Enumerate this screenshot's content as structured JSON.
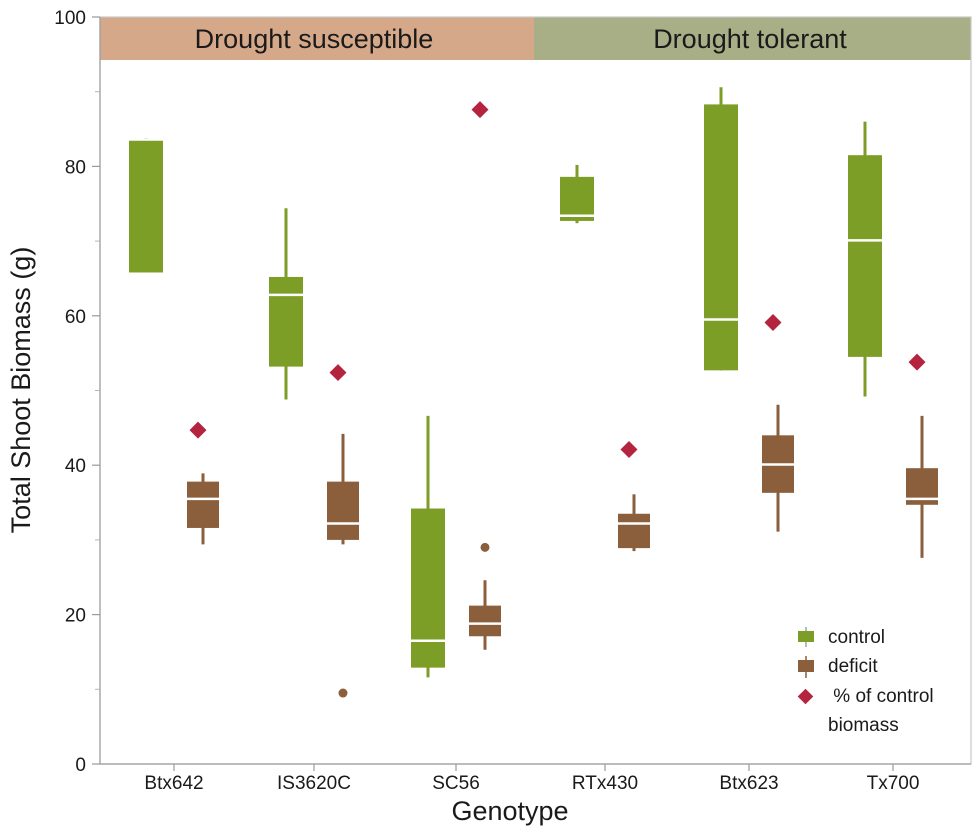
{
  "chart_data": {
    "type": "box",
    "xlabel": "Genotype",
    "ylabel": "Total Shoot Biomass (g)",
    "ylim": [
      0,
      100
    ],
    "yticks": [
      0,
      20,
      40,
      60,
      80,
      100
    ],
    "categories": [
      "Btx642",
      "IS3620C",
      "SC56",
      "RTx430",
      "Btx623",
      "Tx700"
    ],
    "groups": [
      {
        "label": "Drought susceptible",
        "categories": [
          "Btx642",
          "IS3620C",
          "SC56"
        ],
        "color": "#D4A889"
      },
      {
        "label": "Drought tolerant",
        "categories": [
          "RTx430",
          "Btx623",
          "Tx700"
        ],
        "color": "#A8AE86"
      }
    ],
    "series": [
      {
        "name": "control",
        "color": "#7C9E27",
        "boxes": [
          {
            "q1": 65.8,
            "median": 83.6,
            "q3": 83.6,
            "whisker_low": 65.8,
            "whisker_high": 83.8,
            "outliers": []
          },
          {
            "q1": 53.2,
            "median": 62.8,
            "q3": 65.2,
            "whisker_low": 48.8,
            "whisker_high": 74.4,
            "outliers": []
          },
          {
            "q1": 12.9,
            "median": 16.5,
            "q3": 34.2,
            "whisker_low": 11.6,
            "whisker_high": 46.6,
            "outliers": []
          },
          {
            "q1": 72.7,
            "median": 73.4,
            "q3": 78.6,
            "whisker_low": 72.4,
            "whisker_high": 80.2,
            "outliers": []
          },
          {
            "q1": 52.7,
            "median": 59.5,
            "q3": 88.3,
            "whisker_low": 52.7,
            "whisker_high": 90.6,
            "outliers": []
          },
          {
            "q1": 54.5,
            "median": 70.1,
            "q3": 81.5,
            "whisker_low": 49.2,
            "whisker_high": 86.0,
            "outliers": []
          }
        ]
      },
      {
        "name": "deficit",
        "color": "#8B5E3C",
        "boxes": [
          {
            "q1": 31.6,
            "median": 35.5,
            "q3": 37.8,
            "whisker_low": 29.4,
            "whisker_high": 38.9,
            "outliers": []
          },
          {
            "q1": 30.0,
            "median": 32.2,
            "q3": 37.8,
            "whisker_low": 29.4,
            "whisker_high": 44.2,
            "outliers": [
              9.5
            ]
          },
          {
            "q1": 17.1,
            "median": 18.8,
            "q3": 21.2,
            "whisker_low": 15.3,
            "whisker_high": 24.6,
            "outliers": [
              29.0
            ]
          },
          {
            "q1": 28.9,
            "median": 32.2,
            "q3": 33.5,
            "whisker_low": 28.5,
            "whisker_high": 36.1,
            "outliers": []
          },
          {
            "q1": 36.3,
            "median": 40.1,
            "q3": 44.0,
            "whisker_low": 31.1,
            "whisker_high": 48.1,
            "outliers": []
          },
          {
            "q1": 34.7,
            "median": 35.5,
            "q3": 39.6,
            "whisker_low": 27.6,
            "whisker_high": 46.6,
            "outliers": []
          }
        ]
      }
    ],
    "percent_of_control": {
      "name": "% of control biomass",
      "color": "#B5243F",
      "values": [
        44.7,
        52.4,
        87.6,
        42.1,
        59.1,
        53.8
      ]
    },
    "legend": {
      "position": "bottom-right",
      "entries": [
        "control",
        "deficit",
        " % of control",
        "biomass"
      ]
    }
  }
}
